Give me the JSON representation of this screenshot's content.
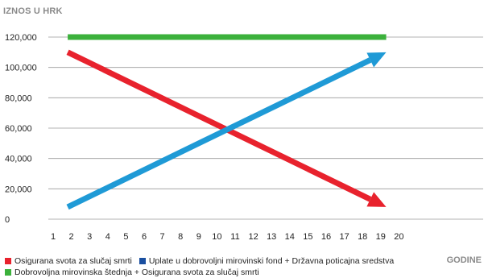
{
  "chart_data": {
    "type": "line",
    "ylabel": "IZNOS U HRK",
    "xlabel": "GODINE",
    "x": [
      1,
      2,
      3,
      4,
      5,
      6,
      7,
      8,
      9,
      10,
      11,
      12,
      13,
      14,
      15,
      16,
      17,
      18,
      19,
      20
    ],
    "ylim": [
      0,
      120000
    ],
    "yticks": [
      0,
      20000,
      40000,
      60000,
      80000,
      100000,
      120000
    ],
    "ytick_labels": [
      "0",
      "20,000",
      "40,000",
      "60,000",
      "80,000",
      "100,000",
      "120,000"
    ],
    "grid": true,
    "series": [
      {
        "name": "Osigurana svota za slučaj smrti",
        "color": "#e8222d",
        "points": [
          [
            1.8,
            110000
          ],
          [
            19.3,
            8000
          ]
        ],
        "arrow": true
      },
      {
        "name": "Uplate u dobrovoljni  mirovinski fond + Državna poticajna sredstva",
        "color": "#1f9ad6",
        "points": [
          [
            1.8,
            8000
          ],
          [
            19.3,
            110000
          ]
        ],
        "arrow": true
      },
      {
        "name": "Dobrovoljna mirovinska štednja + Osigurana svota za slučaj smrti",
        "color": "#3cb13c",
        "points": [
          [
            1.8,
            120000
          ],
          [
            19.3,
            120000
          ]
        ],
        "arrow": false
      }
    ],
    "legend_placement": "bottom-left",
    "legend_marker_colors": [
      "#e8222d",
      "#1a4fa0",
      "#3cb13c"
    ]
  }
}
